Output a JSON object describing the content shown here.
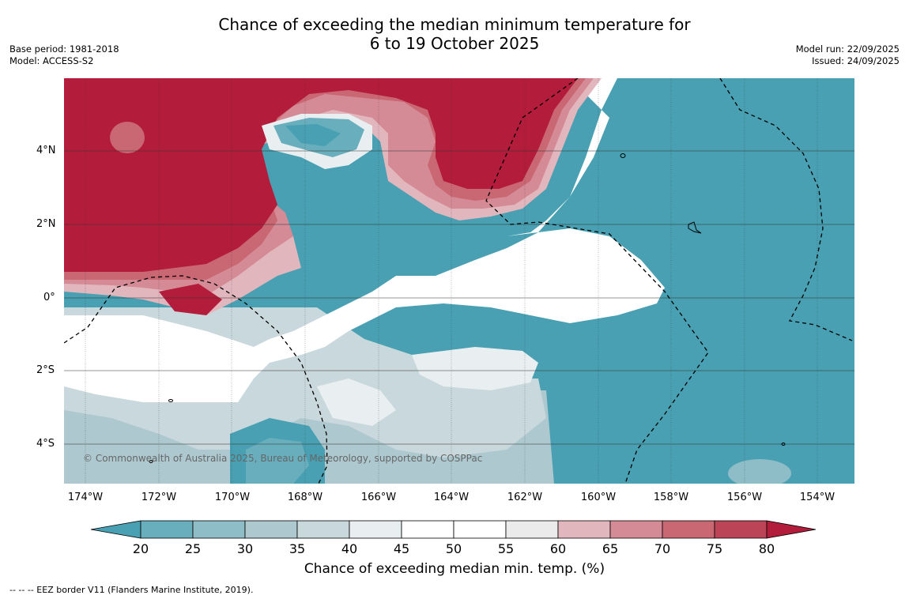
{
  "title_line1": "Chance of exceeding the median minimum temperature for",
  "title_line2": "6 to 19 October 2025",
  "meta_left": {
    "base_period": "Base period: 1981-2018",
    "model": "Model: ACCESS-S2"
  },
  "meta_right": {
    "model_run": "Model run: 22/09/2025",
    "issued": "Issued: 24/09/2025"
  },
  "copyright": "© Commonwealth of Australia 2025, Bureau of Meteorology, supported by COSPPac",
  "lat_labels": [
    "4°N",
    "2°N",
    "0°",
    "2°S",
    "4°S"
  ],
  "lon_labels": [
    "174°W",
    "172°W",
    "170°W",
    "168°W",
    "166°W",
    "164°W",
    "162°W",
    "160°W",
    "158°W",
    "156°W",
    "154°W"
  ],
  "colorbar": {
    "ticks": [
      "20",
      "25",
      "30",
      "35",
      "40",
      "45",
      "50",
      "55",
      "60",
      "65",
      "70",
      "75",
      "80"
    ],
    "colors": [
      "#48a0b2",
      "#68aebc",
      "#8fbdc7",
      "#adc9cf",
      "#c9d8dc",
      "#e9eff1",
      "#ffffff",
      "#ffffff",
      "#ecebec",
      "#e2b6bd",
      "#d58b96",
      "#c96773",
      "#bb4556",
      "#b31c3a"
    ],
    "label": "Chance of exceeding median min. temp. (%)"
  },
  "footnote": "-- -- -- EEZ border V11 (Flanders Marine Institute, 2019)."
}
